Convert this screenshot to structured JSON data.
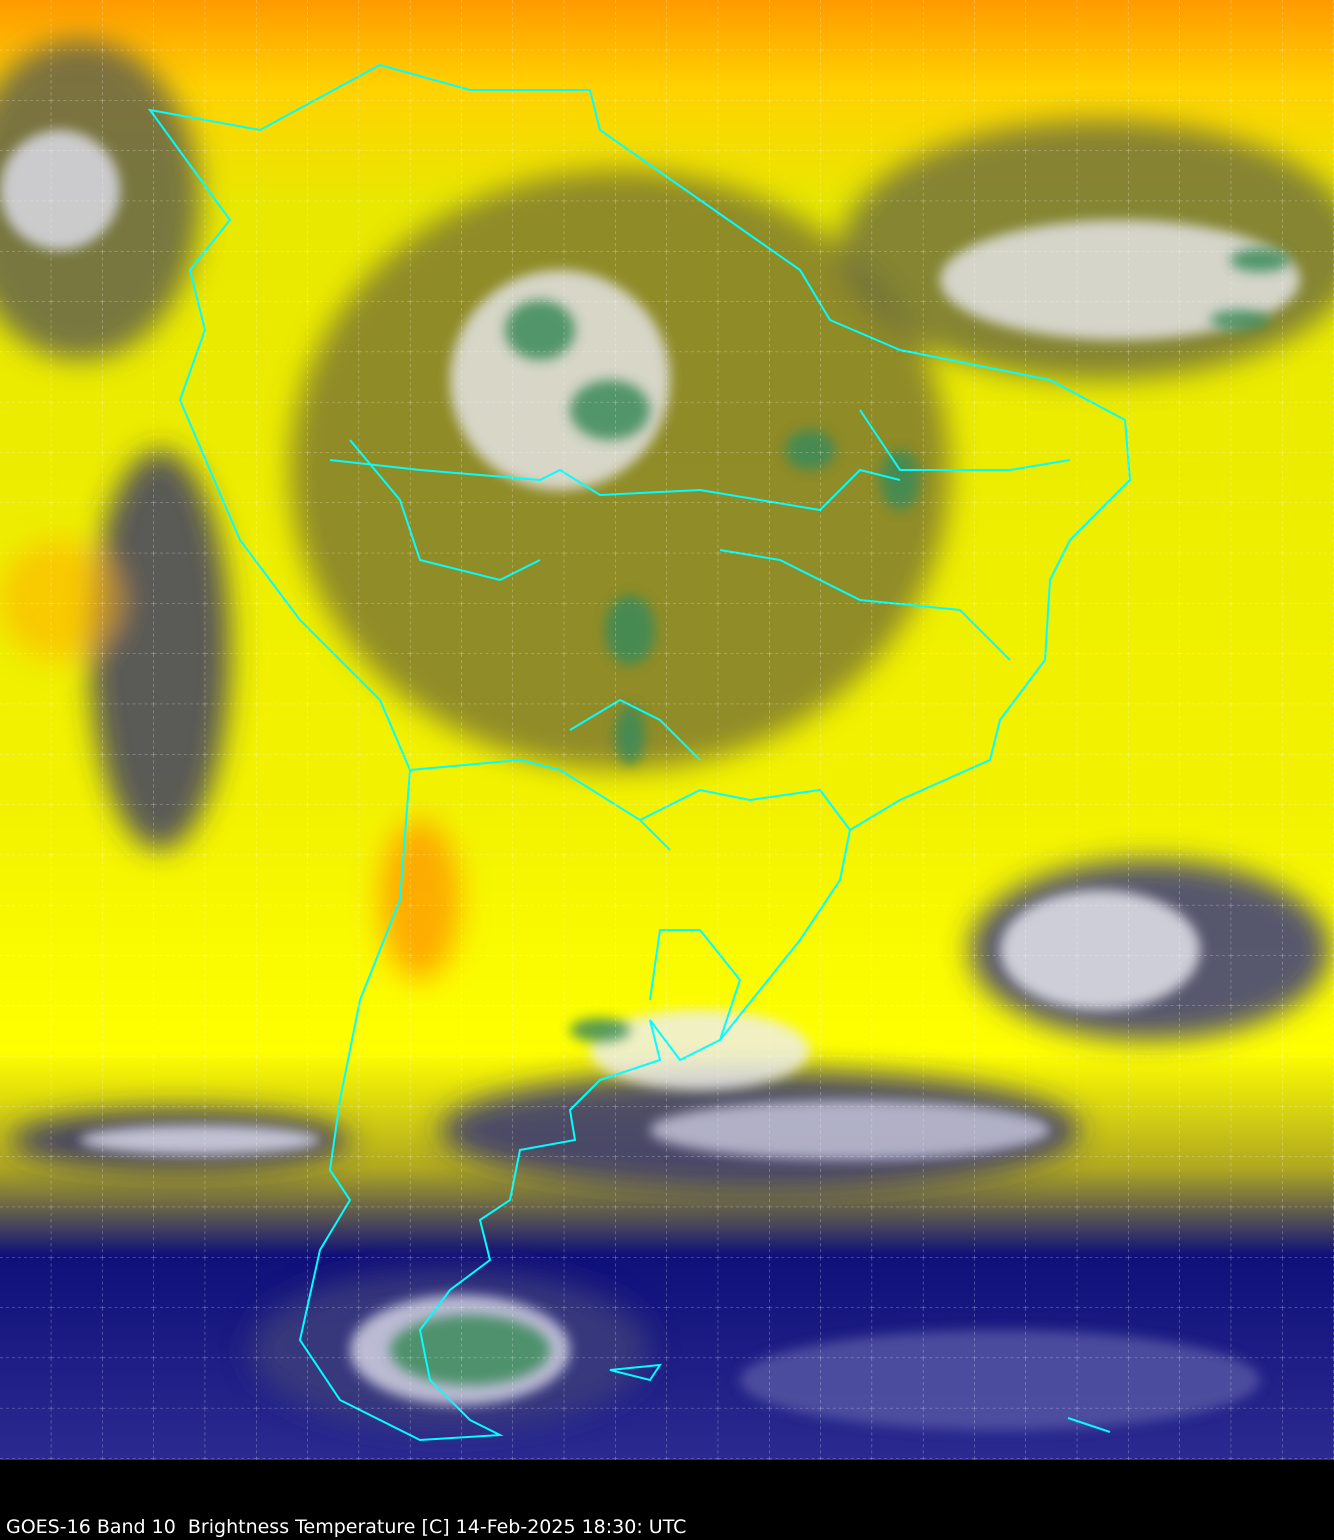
{
  "caption": "GOES-16 Band 10  Brightness Temperature [C] 14-Feb-2025 18:30: UTC",
  "colors": {
    "warm_dry": "#ff8c00",
    "mid": "#ffff00",
    "moist": "#7a7a2a",
    "cold": "#0a0a80",
    "cloud_top": "#ffffff",
    "deep_convection": "#3a8a5a",
    "borders": "#00ffff",
    "grid": "#ffffff",
    "background": "#000000"
  }
}
